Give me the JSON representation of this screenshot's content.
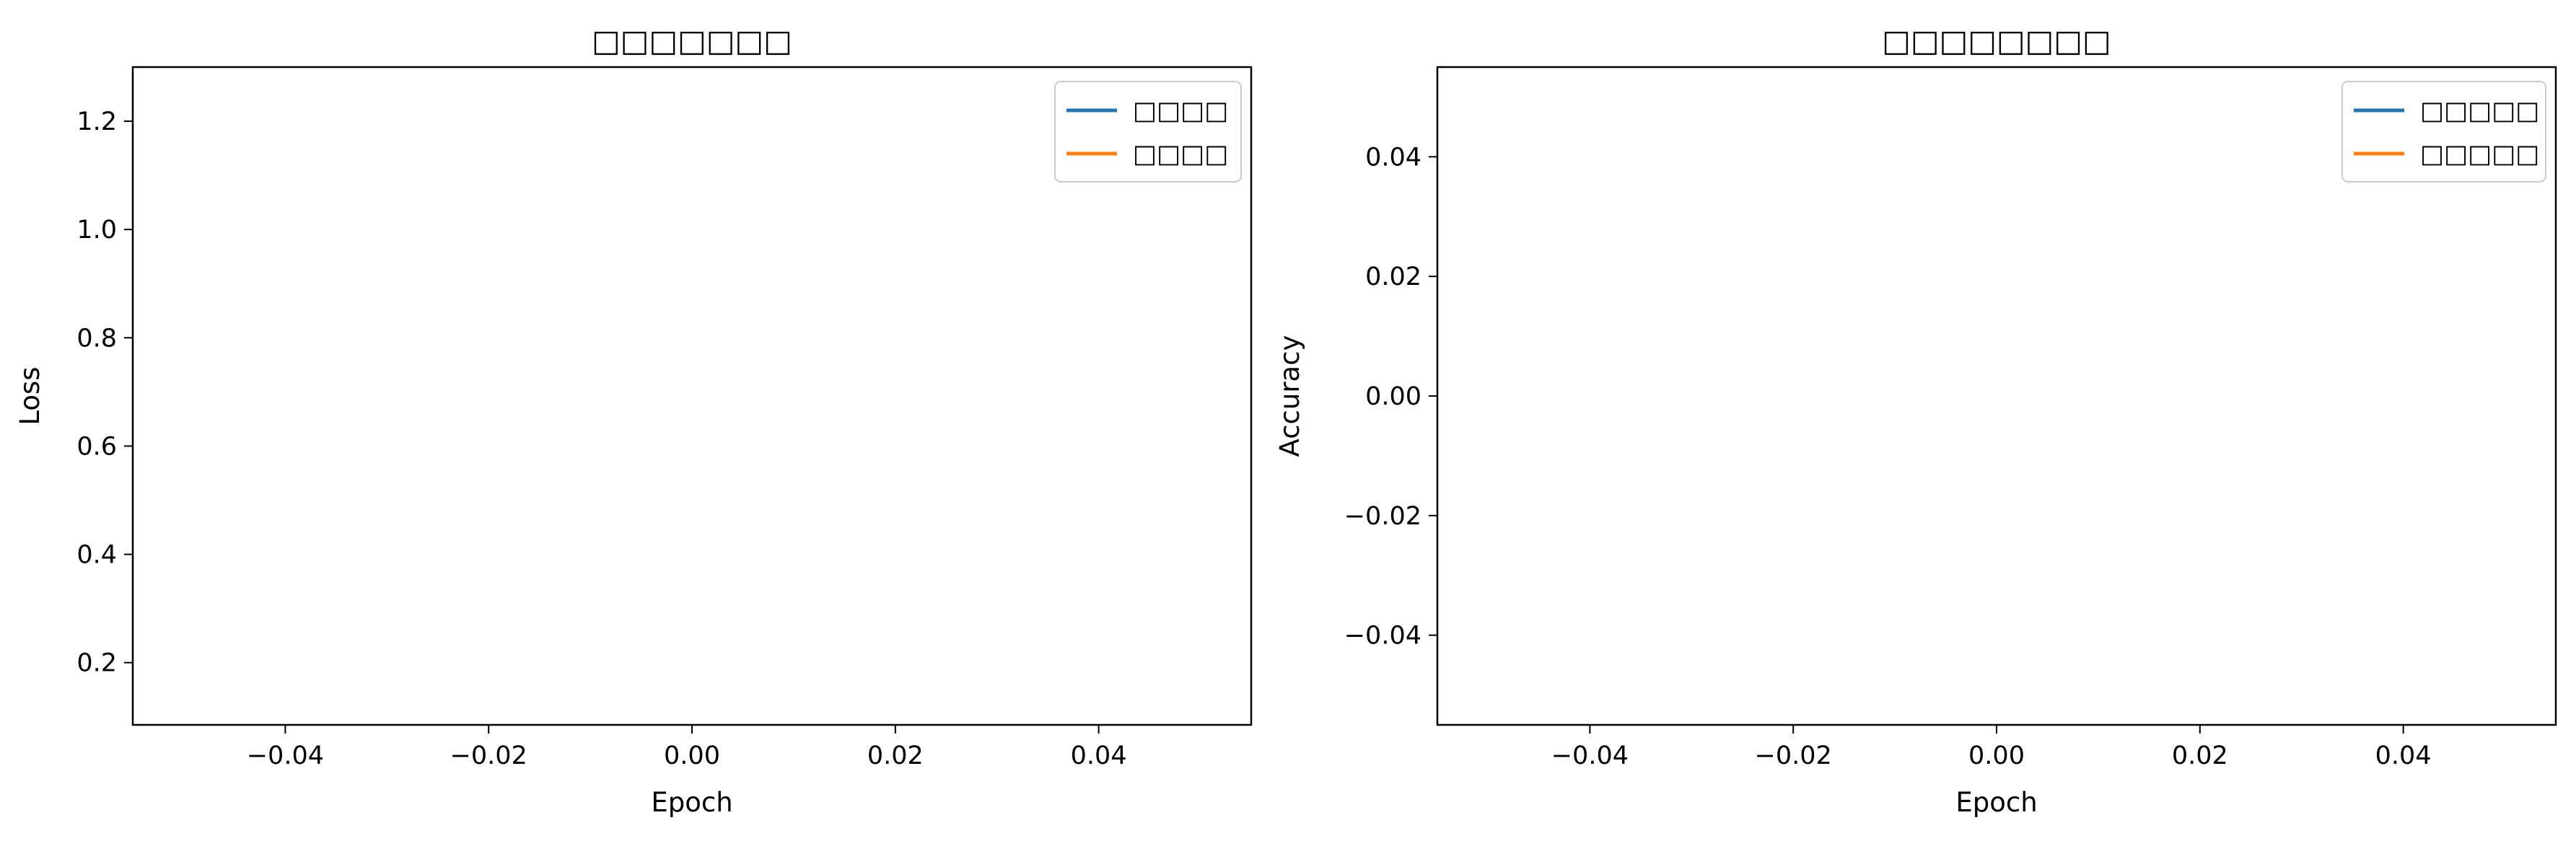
{
  "chart_data": [
    {
      "type": "line",
      "title": "□□□□□□□",
      "xlabel": "Epoch",
      "ylabel": "Loss",
      "xlim": [
        -0.055,
        0.055
      ],
      "ylim": [
        0.085,
        1.3
      ],
      "xticks": [
        -0.04,
        -0.02,
        0.0,
        0.02,
        0.04
      ],
      "xtick_labels": [
        "−0.04",
        "−0.02",
        "0.00",
        "0.02",
        "0.04"
      ],
      "yticks": [
        0.2,
        0.4,
        0.6,
        0.8,
        1.0,
        1.2
      ],
      "ytick_labels": [
        "0.2",
        "0.4",
        "0.6",
        "0.8",
        "1.0",
        "1.2"
      ],
      "grid": false,
      "legend_position": "top-right",
      "series": [
        {
          "name": "□□□□",
          "color": "#1f77b4",
          "x": [],
          "y": []
        },
        {
          "name": "□□□□",
          "color": "#ff7f0e",
          "x": [],
          "y": []
        }
      ]
    },
    {
      "type": "line",
      "title": "□□□□□□□□",
      "xlabel": "Epoch",
      "ylabel": "Accuracy",
      "xlim": [
        -0.055,
        0.055
      ],
      "ylim": [
        -0.055,
        0.055
      ],
      "xticks": [
        -0.04,
        -0.02,
        0.0,
        0.02,
        0.04
      ],
      "xtick_labels": [
        "−0.04",
        "−0.02",
        "0.00",
        "0.02",
        "0.04"
      ],
      "yticks": [
        -0.04,
        -0.02,
        0.0,
        0.02,
        0.04
      ],
      "ytick_labels": [
        "−0.04",
        "−0.02",
        "0.00",
        "0.02",
        "0.04"
      ],
      "grid": false,
      "legend_position": "top-right",
      "series": [
        {
          "name": "□□□□□",
          "color": "#1f77b4",
          "x": [],
          "y": []
        },
        {
          "name": "□□□□□",
          "color": "#ff7f0e",
          "x": [],
          "y": []
        }
      ]
    }
  ]
}
